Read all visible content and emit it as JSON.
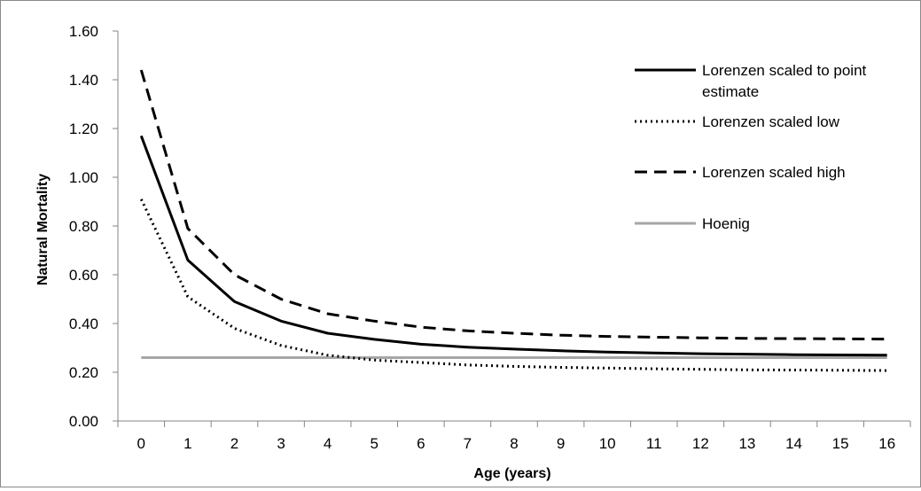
{
  "chart_data": {
    "type": "line",
    "title": "",
    "xlabel": "Age (years)",
    "ylabel": "Natural Mortality",
    "x": [
      0,
      1,
      2,
      3,
      4,
      5,
      6,
      7,
      8,
      9,
      10,
      11,
      12,
      13,
      14,
      15,
      16
    ],
    "x_tick_labels": [
      "0",
      "1",
      "2",
      "3",
      "4",
      "5",
      "6",
      "7",
      "8",
      "9",
      "10",
      "11",
      "12",
      "13",
      "14",
      "15",
      "16"
    ],
    "y_tick_labels": [
      "0.00",
      "0.20",
      "0.40",
      "0.60",
      "0.80",
      "1.00",
      "1.20",
      "1.40",
      "1.60"
    ],
    "ylim": [
      0,
      1.6
    ],
    "grid": false,
    "legend_position": "top-right",
    "series": [
      {
        "name": "Lorenzen scaled to point estimate",
        "legend_lines": [
          "Lorenzen scaled to point",
          "estimate"
        ],
        "style": "solid",
        "color": "#000000",
        "values": [
          1.17,
          0.66,
          0.49,
          0.41,
          0.36,
          0.335,
          0.315,
          0.303,
          0.295,
          0.288,
          0.283,
          0.279,
          0.276,
          0.274,
          0.272,
          0.271,
          0.27
        ]
      },
      {
        "name": "Lorenzen scaled low",
        "legend_lines": [
          "Lorenzen scaled low"
        ],
        "style": "dotted",
        "color": "#000000",
        "values": [
          0.91,
          0.51,
          0.38,
          0.31,
          0.27,
          0.25,
          0.24,
          0.23,
          0.224,
          0.22,
          0.217,
          0.214,
          0.212,
          0.21,
          0.209,
          0.208,
          0.207
        ]
      },
      {
        "name": "Lorenzen scaled high",
        "legend_lines": [
          "Lorenzen scaled high"
        ],
        "style": "dashed",
        "color": "#000000",
        "values": [
          1.44,
          0.79,
          0.6,
          0.5,
          0.44,
          0.41,
          0.385,
          0.37,
          0.36,
          0.352,
          0.347,
          0.344,
          0.341,
          0.339,
          0.338,
          0.337,
          0.336
        ]
      },
      {
        "name": "Hoenig",
        "legend_lines": [
          "Hoenig"
        ],
        "style": "solid",
        "color": "#a6a6a6",
        "values": [
          0.26,
          0.26,
          0.26,
          0.26,
          0.26,
          0.26,
          0.26,
          0.26,
          0.26,
          0.26,
          0.26,
          0.26,
          0.26,
          0.26,
          0.26,
          0.26,
          0.26
        ]
      }
    ]
  }
}
